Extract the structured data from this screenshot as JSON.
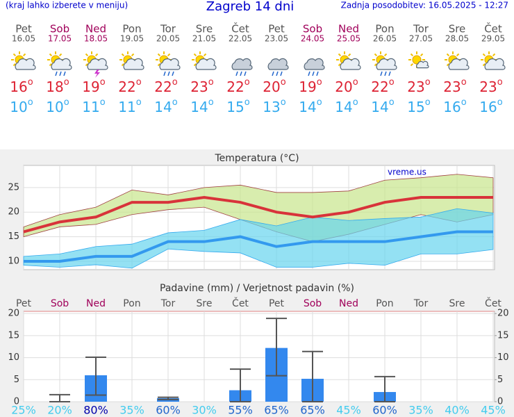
{
  "header": {
    "hint": "(kraj lahko izberete v meniju)",
    "title": "Zagreb 14 dni",
    "updated": "Zadnja posodobitev: 16.05.2025 - 12:27"
  },
  "forecast": {
    "degree": "o",
    "high_color": "#dd2233",
    "low_color": "#33aaee",
    "days": [
      {
        "name": "Pet",
        "date": "16.05",
        "high": 16,
        "low": 10,
        "color": "#555555"
      },
      {
        "name": "Sob",
        "date": "17.05",
        "high": 18,
        "low": 10,
        "color": "#a0005a"
      },
      {
        "name": "Ned",
        "date": "18.05",
        "high": 19,
        "low": 11,
        "color": "#a0005a"
      },
      {
        "name": "Pon",
        "date": "19.05",
        "high": 22,
        "low": 11,
        "color": "#555555"
      },
      {
        "name": "Tor",
        "date": "20.05",
        "high": 22,
        "low": 14,
        "color": "#555555"
      },
      {
        "name": "Sre",
        "date": "21.05",
        "high": 23,
        "low": 14,
        "color": "#555555"
      },
      {
        "name": "Čet",
        "date": "22.05",
        "high": 22,
        "low": 15,
        "color": "#555555"
      },
      {
        "name": "Pet",
        "date": "23.05",
        "high": 20,
        "low": 13,
        "color": "#555555"
      },
      {
        "name": "Sob",
        "date": "24.05",
        "high": 19,
        "low": 14,
        "color": "#a0005a"
      },
      {
        "name": "Ned",
        "date": "25.05",
        "high": 20,
        "low": 14,
        "color": "#a0005a"
      },
      {
        "name": "Pon",
        "date": "26.05",
        "high": 22,
        "low": 14,
        "color": "#555555"
      },
      {
        "name": "Tor",
        "date": "27.05",
        "high": 23,
        "low": 15,
        "color": "#555555"
      },
      {
        "name": "Sre",
        "date": "28.05",
        "high": 23,
        "low": 16,
        "color": "#555555"
      },
      {
        "name": "Čet",
        "date": "29.05",
        "high": 23,
        "low": 16,
        "color": "#555555"
      }
    ]
  },
  "chart_data": [
    {
      "type": "line",
      "title": "Temperatura (°C)",
      "note": "vreme.us",
      "ylim": [
        8.3,
        29.5
      ],
      "yticks": [
        10,
        15,
        20,
        25
      ],
      "grid": true,
      "bands": [
        {
          "color": "#c8e68c",
          "edge": "#a04040",
          "upper": [
            17,
            19.5,
            21,
            24.5,
            23.5,
            25,
            25.5,
            24,
            24,
            24.3,
            26.5,
            27,
            27.7,
            27
          ],
          "lower": [
            15,
            17,
            17.5,
            19.5,
            20.5,
            21,
            18.5,
            16,
            14,
            15.5,
            17.5,
            19.5,
            18,
            19.5
          ]
        },
        {
          "color": "#66d4ee",
          "edge": "#33aaee",
          "upper": [
            11,
            11.5,
            13,
            13.5,
            15.8,
            16.3,
            18.5,
            17.2,
            19,
            18.3,
            18.7,
            19,
            20.7,
            19.8
          ],
          "lower": [
            9.2,
            8.8,
            9.3,
            8.6,
            12.5,
            12,
            11.7,
            8.8,
            8.8,
            9.6,
            9.2,
            11.5,
            11.5,
            12.4
          ]
        }
      ],
      "series": [
        {
          "color": "#d8333a",
          "values": [
            16,
            18,
            19,
            22,
            22,
            23,
            22,
            20,
            19,
            20,
            22,
            23,
            23,
            23
          ]
        },
        {
          "color": "#3399ee",
          "values": [
            10,
            10,
            11,
            11,
            14,
            14,
            15,
            13,
            14,
            14,
            14,
            15,
            16,
            16
          ]
        }
      ]
    },
    {
      "type": "bar",
      "title": "Padavine (mm) / Verjetnost padavin (%)",
      "categories": [
        "Pet",
        "Sob",
        "Ned",
        "Pon",
        "Tor",
        "Sre",
        "Čet",
        "Pet",
        "Sob",
        "Ned",
        "Pon",
        "Tor",
        "Sre",
        "Čet"
      ],
      "category_colors": [
        "#555555",
        "#a0005a",
        "#a0005a",
        "#555555",
        "#555555",
        "#555555",
        "#555555",
        "#555555",
        "#a0005a",
        "#a0005a",
        "#555555",
        "#555555",
        "#555555",
        "#555555"
      ],
      "values": [
        0,
        0,
        6,
        0,
        0.8,
        0,
        2.6,
        12.2,
        5.2,
        0,
        2.2,
        0,
        0,
        0
      ],
      "color": "#3388ee",
      "error_low": [
        null,
        0,
        1.5,
        null,
        0.5,
        null,
        0,
        5.9,
        0,
        null,
        0,
        null,
        null,
        null
      ],
      "error_high": [
        null,
        1.6,
        10.1,
        null,
        1,
        null,
        7.4,
        18.9,
        11.4,
        null,
        5.7,
        null,
        null,
        null
      ],
      "error_color": "#555555",
      "ylim": [
        0,
        20.5
      ],
      "yticks": [
        0,
        5,
        10,
        15,
        20
      ],
      "y2lim": [
        0,
        20.5
      ],
      "y2ticks": [
        0,
        5,
        10,
        15,
        20
      ],
      "grid": true,
      "probability": {
        "values": [
          25,
          20,
          80,
          35,
          60,
          30,
          55,
          65,
          65,
          45,
          60,
          35,
          40,
          45
        ],
        "value_labels": [
          "25%",
          "20%",
          "80%",
          "35%",
          "60%",
          "30%",
          "55%",
          "65%",
          "65%",
          "45%",
          "60%",
          "35%",
          "40%",
          "45%"
        ],
        "colors": [
          "#44ccee",
          "#44ccee",
          "#0000aa",
          "#44ccee",
          "#2266cc",
          "#44ccee",
          "#2266cc",
          "#2266cc",
          "#2266cc",
          "#44ccee",
          "#2266cc",
          "#44ccee",
          "#44ccee",
          "#44ccee"
        ]
      }
    }
  ]
}
